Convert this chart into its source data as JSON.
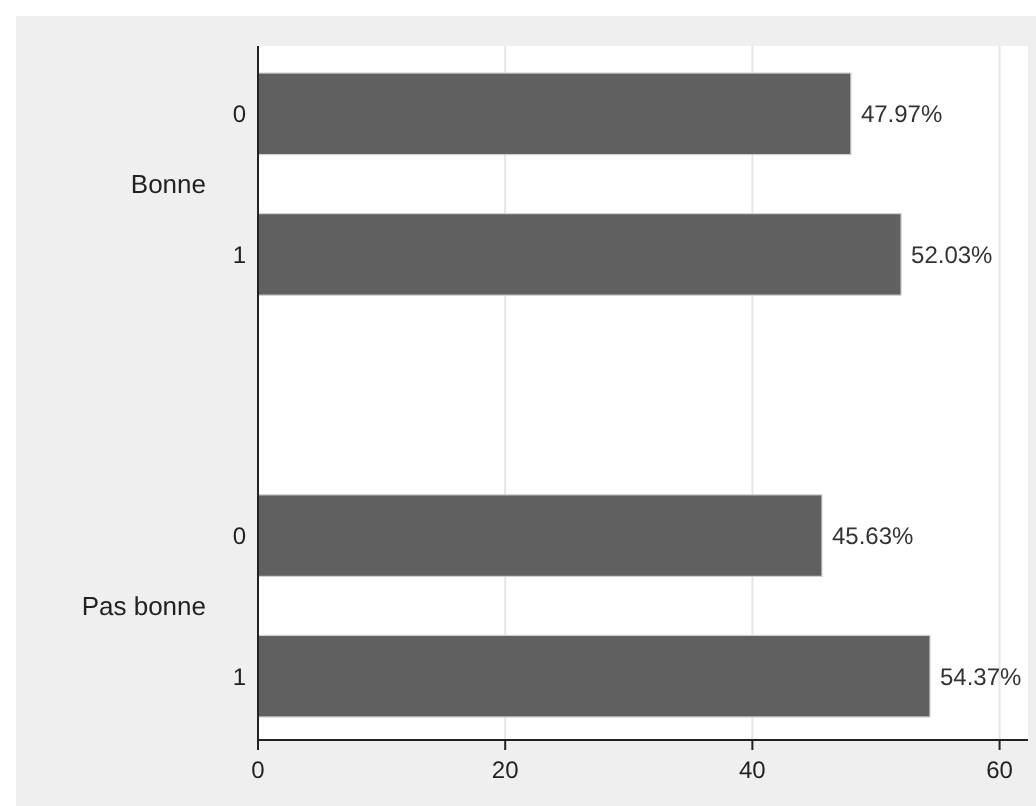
{
  "chart_data": {
    "type": "bar",
    "orientation": "horizontal",
    "categories": [
      "0",
      "1",
      null,
      "0",
      "1"
    ],
    "values": [
      47.97,
      52.03,
      null,
      45.63,
      54.37
    ],
    "value_labels": [
      "47.97%",
      "52.03%",
      null,
      "45.63%",
      "54.37%"
    ],
    "color": "#606060",
    "annotations": [
      "Bonne",
      "Pas bonne"
    ],
    "xlim": [
      0,
      62.3
    ],
    "xticks": [
      0,
      20,
      40,
      60
    ],
    "grid": "x"
  }
}
